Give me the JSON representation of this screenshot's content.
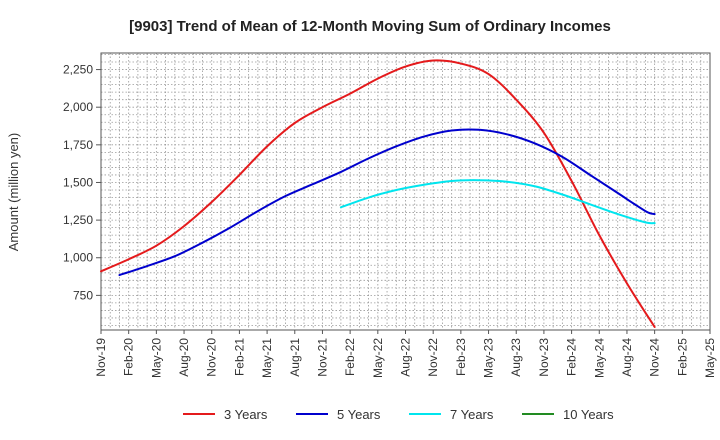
{
  "chart_data": {
    "type": "line",
    "title": "[9903]  Trend of Mean of 12-Month Moving Sum of Ordinary Incomes",
    "xlabel": "",
    "ylabel": "Amount (million yen)",
    "x_tick_labels": [
      "Nov-19",
      "Feb-20",
      "May-20",
      "Aug-20",
      "Nov-20",
      "Feb-21",
      "May-21",
      "Aug-21",
      "Nov-21",
      "Feb-22",
      "May-22",
      "Aug-22",
      "Nov-22",
      "Feb-23",
      "May-23",
      "Aug-23",
      "Nov-23",
      "Feb-24",
      "May-24",
      "Aug-24",
      "Nov-24",
      "Feb-25",
      "May-25"
    ],
    "y_ticks": [
      750,
      1000,
      1250,
      1500,
      1750,
      2000,
      2250
    ],
    "y_tick_labels": [
      "750",
      "1,000",
      "1,250",
      "1,500",
      "1,750",
      "2,000",
      "2,250"
    ],
    "ylim": [
      520,
      2360
    ],
    "x_range_months": [
      0,
      66
    ],
    "grid": true,
    "legend_position": "bottom",
    "series": [
      {
        "name": "3 Years",
        "color": "#e41a1c",
        "x": [
          0,
          3,
          6,
          9,
          12,
          15,
          18,
          21,
          24,
          27,
          30,
          33,
          36,
          39,
          42,
          45,
          48,
          51,
          54,
          57,
          60
        ],
        "y": [
          910,
          990,
          1080,
          1210,
          1370,
          1550,
          1740,
          1895,
          2000,
          2090,
          2190,
          2270,
          2310,
          2290,
          2220,
          2050,
          1830,
          1510,
          1150,
          830,
          540
        ]
      },
      {
        "name": "5 Years",
        "color": "#0000cd",
        "x": [
          2,
          5,
          8,
          11,
          14,
          17,
          20,
          23,
          26,
          29,
          32,
          35,
          38,
          41,
          44,
          47,
          50,
          53,
          56,
          59,
          60
        ],
        "y": [
          885,
          945,
          1010,
          1100,
          1200,
          1310,
          1410,
          1490,
          1570,
          1660,
          1740,
          1805,
          1845,
          1850,
          1820,
          1760,
          1670,
          1550,
          1430,
          1310,
          1290
        ]
      },
      {
        "name": "7 Years",
        "color": "#00e5ee",
        "x": [
          26,
          29,
          32,
          35,
          38,
          41,
          44,
          47,
          50,
          53,
          56,
          59,
          60
        ],
        "y": [
          1335,
          1400,
          1450,
          1485,
          1510,
          1515,
          1505,
          1475,
          1420,
          1355,
          1290,
          1235,
          1230
        ]
      },
      {
        "name": "10 Years",
        "color": "#228b22",
        "x": [],
        "y": []
      }
    ]
  }
}
